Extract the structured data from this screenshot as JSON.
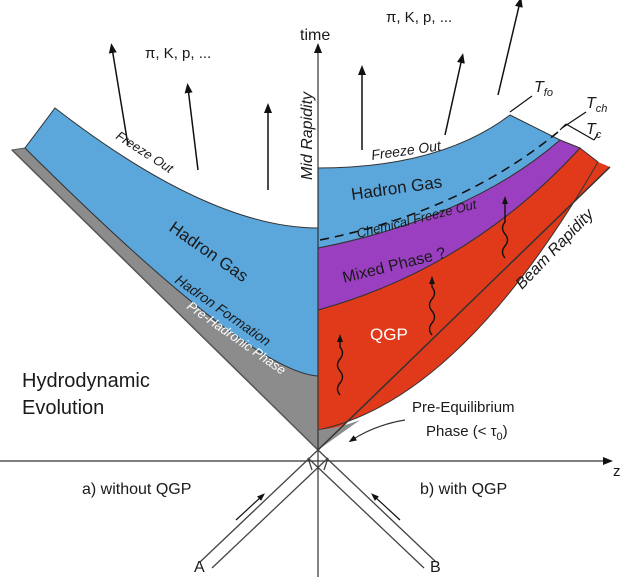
{
  "axes": {
    "time_label": "time",
    "z_label": "z",
    "mid_rapidity": "Mid Rapidity",
    "beam_rapidity": "Beam Rapidity"
  },
  "particles": {
    "left": "π, K, p, ...",
    "right": "π, K, p, ..."
  },
  "left_panel": {
    "caption": "a) without QGP",
    "freeze_out": "Freeze Out",
    "hadron_gas": "Hadron Gas",
    "hadron_formation": "Hadron Formation",
    "pre_hadronic": "Pre-Hadronic Phase",
    "hydro_line1": "Hydrodynamic",
    "hydro_line2": "Evolution"
  },
  "right_panel": {
    "caption": "b) with QGP",
    "freeze_out": "Freeze Out",
    "hadron_gas": "Hadron Gas",
    "chemical_freeze_out": "Chemical Freeze Out",
    "mixed_phase": "Mixed Phase ?",
    "qgp": "QGP",
    "pre_eq_line1": "Pre-Equilibrium",
    "pre_eq_line2": "Phase (< τ",
    "pre_eq_sub": "0",
    "pre_eq_close": ")",
    "t_fo": "T",
    "t_fo_sub": "fo",
    "t_ch": "T",
    "t_ch_sub": "ch",
    "t_c": "T",
    "t_c_sub": "c"
  },
  "beams": {
    "a": "A",
    "b": "B"
  },
  "colors": {
    "hadron_gas": "#5ba7dc",
    "mixed_phase": "#9a3fc0",
    "qgp": "#e03a1b",
    "pre_hadronic": "#8c8c8c"
  }
}
